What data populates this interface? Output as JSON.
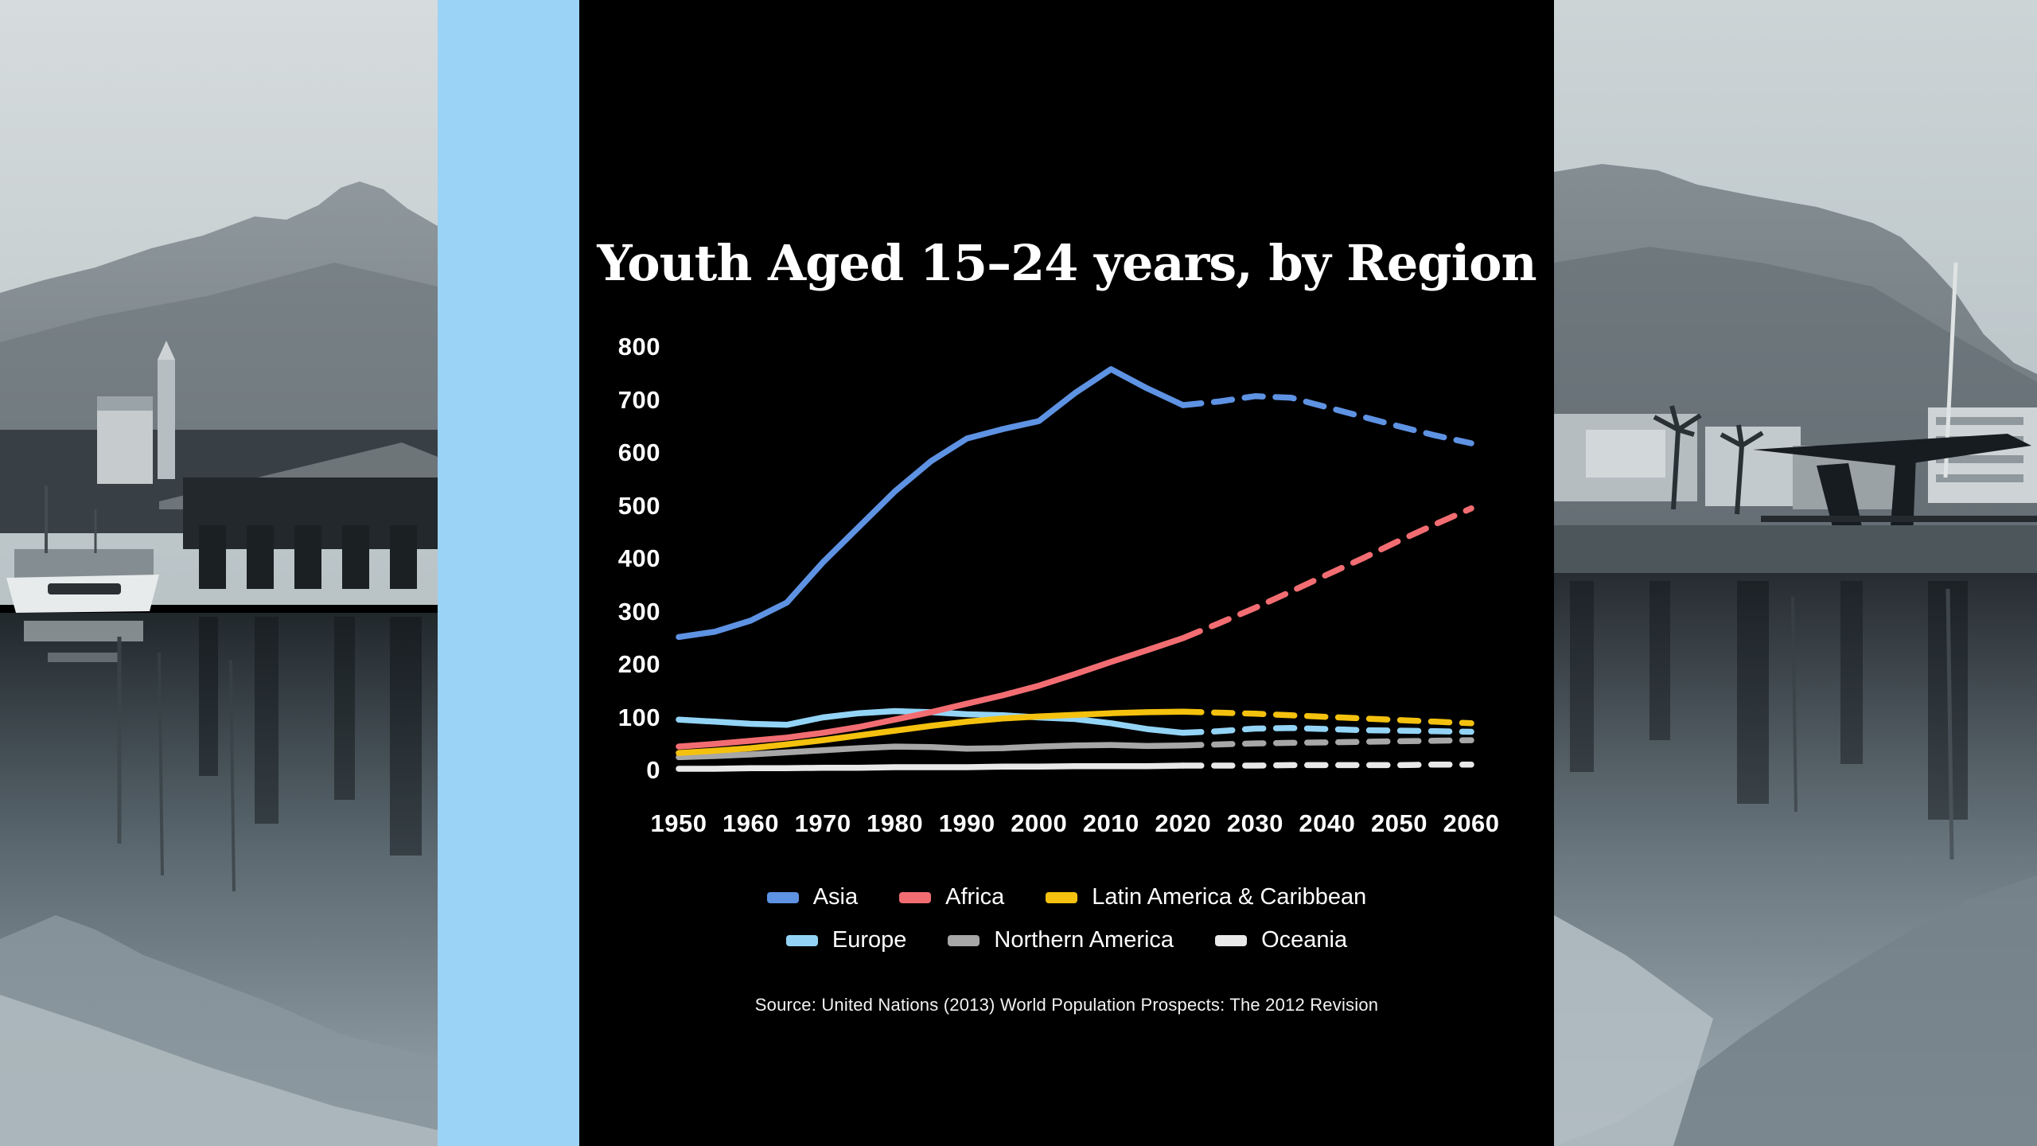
{
  "page": {
    "background": "#000000"
  },
  "stripe": {
    "color": "#9AD3F6"
  },
  "panel": {
    "background": "#000000"
  },
  "chart": {
    "title": "Youth Aged 15–24 years, by Region",
    "y_ticks": [
      "800",
      "700",
      "600",
      "500",
      "400",
      "300",
      "200",
      "100",
      "0"
    ],
    "x_ticks": [
      "1950",
      "1960",
      "1970",
      "1980",
      "1990",
      "2000",
      "2010",
      "2020",
      "2030",
      "2040",
      "2050",
      "2060"
    ],
    "source": "Source: United Nations (2013) World Population Prospects: The 2012 Revision"
  },
  "chart_data": {
    "type": "line",
    "title": "Youth Aged 15–24 years, by Region",
    "unit": "millions of people (youth aged 15–24)",
    "x": [
      1950,
      1955,
      1960,
      1965,
      1970,
      1975,
      1980,
      1985,
      1990,
      1995,
      2000,
      2005,
      2010,
      2015,
      2020,
      2025,
      2030,
      2035,
      2040,
      2045,
      2050,
      2055,
      2060
    ],
    "xlim": [
      1950,
      2060
    ],
    "ylim": [
      0,
      800
    ],
    "grid": false,
    "projection_start": 2020,
    "projection_style": "dashed",
    "legend_position": "bottom",
    "series": [
      {
        "name": "Asia",
        "color": "#5E92E3",
        "values": [
          252,
          262,
          283,
          317,
          393,
          460,
          527,
          584,
          627,
          645,
          660,
          713,
          758,
          722,
          690,
          697,
          707,
          704,
          686,
          668,
          650,
          633,
          618
        ]
      },
      {
        "name": "Africa",
        "color": "#F26D72",
        "values": [
          45,
          50,
          56,
          62,
          71,
          82,
          96,
          110,
          126,
          142,
          160,
          182,
          205,
          227,
          250,
          278,
          307,
          338,
          370,
          401,
          434,
          465,
          495
        ]
      },
      {
        "name": "Latin America & Caribbean",
        "color": "#F4C10E",
        "values": [
          33,
          37,
          42,
          49,
          57,
          66,
          75,
          84,
          92,
          98,
          102,
          105,
          108,
          110,
          111,
          109,
          107,
          104,
          101,
          98,
          95,
          92,
          89
        ]
      },
      {
        "name": "Europe",
        "color": "#93D4F6",
        "values": [
          96,
          92,
          88,
          86,
          100,
          108,
          112,
          110,
          106,
          104,
          100,
          97,
          89,
          78,
          71,
          74,
          79,
          80,
          78,
          76,
          75,
          74,
          73
        ]
      },
      {
        "name": "Northern America",
        "color": "#A7A7A7",
        "values": [
          25,
          27,
          30,
          34,
          38,
          42,
          45,
          44,
          41,
          42,
          45,
          47,
          48,
          46,
          47,
          49,
          51,
          52,
          53,
          54,
          55,
          56,
          57
        ]
      },
      {
        "name": "Oceania",
        "color": "#E9E9E9",
        "values": [
          3,
          3,
          4,
          4,
          5,
          5,
          6,
          6,
          6,
          7,
          7,
          8,
          8,
          8,
          9,
          9,
          9,
          10,
          10,
          10,
          10,
          11,
          11
        ]
      }
    ],
    "source": "Source: United Nations (2013) World Population Prospects: The 2012 Revision"
  }
}
